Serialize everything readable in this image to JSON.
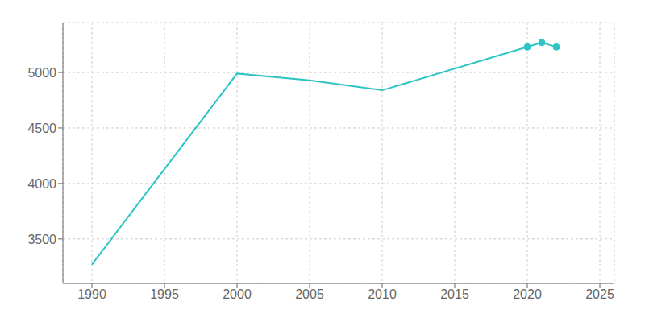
{
  "chart_data": {
    "type": "line",
    "x": [
      1990,
      2000,
      2005,
      2010,
      2020,
      2021,
      2022
    ],
    "series": [
      {
        "type": "line",
        "color": "#2EC4C4",
        "marker": "none",
        "values": [
          3270,
          4990,
          4930,
          4840,
          5230,
          5270,
          5230
        ]
      },
      {
        "type": "scatter",
        "color": "#2EC4C4",
        "marker": "circle",
        "values": [
          null,
          null,
          null,
          null,
          5230,
          5270,
          5230
        ]
      }
    ],
    "xlim": [
      1988,
      2026
    ],
    "ylim": [
      3100,
      5450
    ],
    "xticks": [
      1990,
      1995,
      2000,
      2005,
      2010,
      2015,
      2020,
      2025
    ],
    "yticks": [
      3500,
      4000,
      4500,
      5000
    ],
    "grid": true
  }
}
